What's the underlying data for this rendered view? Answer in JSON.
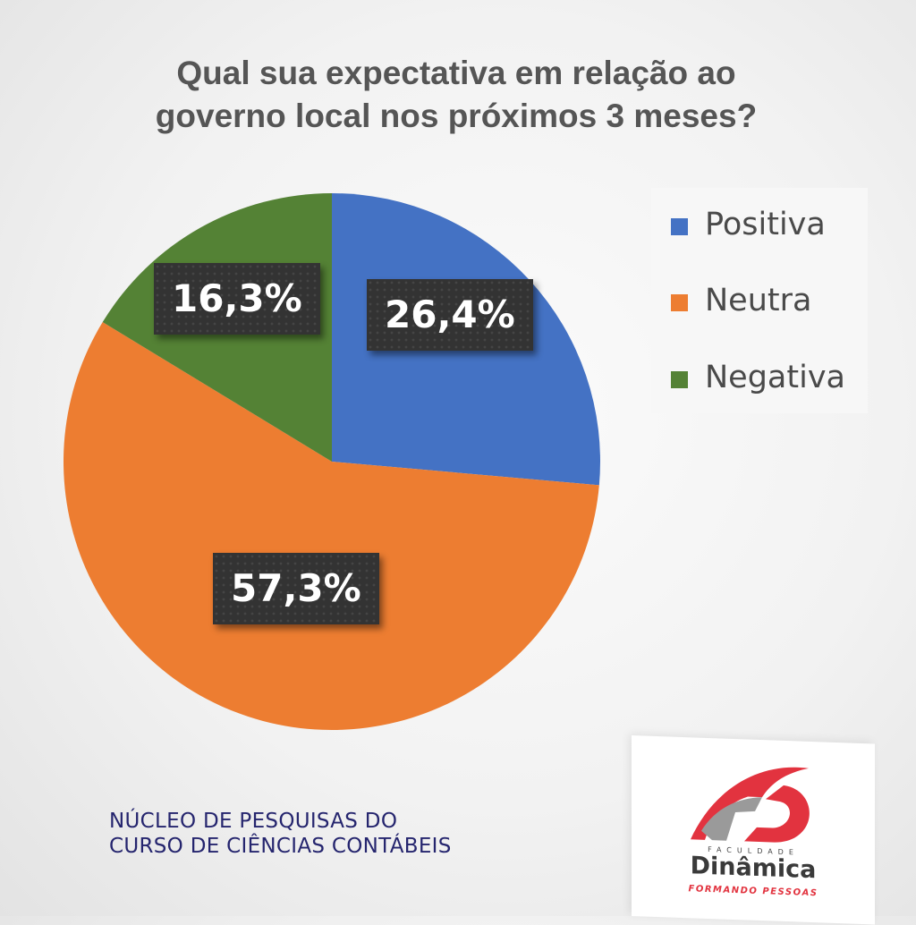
{
  "chart_data": {
    "type": "pie",
    "title": [
      "Qual sua expectativa em relação ao",
      "governo local nos próximos 3 meses?"
    ],
    "slices": [
      {
        "label": "Positiva",
        "value": 26.4,
        "display": "26,4%",
        "color": "#4472C4"
      },
      {
        "label": "Neutra",
        "value": 57.3,
        "display": "57,3%",
        "color": "#ED7D31"
      },
      {
        "label": "Negativa",
        "value": 16.3,
        "display": "16,3%",
        "color": "#548235"
      }
    ],
    "legend_position": "right",
    "start_angle": "12 o'clock",
    "direction": "clockwise"
  },
  "footer": {
    "lines": [
      "NÚCLEO DE PESQUISAS DO",
      "CURSO DE CIÊNCIAS CONTÁBEIS"
    ]
  },
  "logo": {
    "icon": "faculdade-dinamica-logo-icon",
    "small_text": "FACULDADE",
    "name": "Dinâmica",
    "tagline": "FORMANDO PESSOAS",
    "colors": {
      "red": "#E2333F",
      "gray": "#9A9A9A"
    }
  }
}
